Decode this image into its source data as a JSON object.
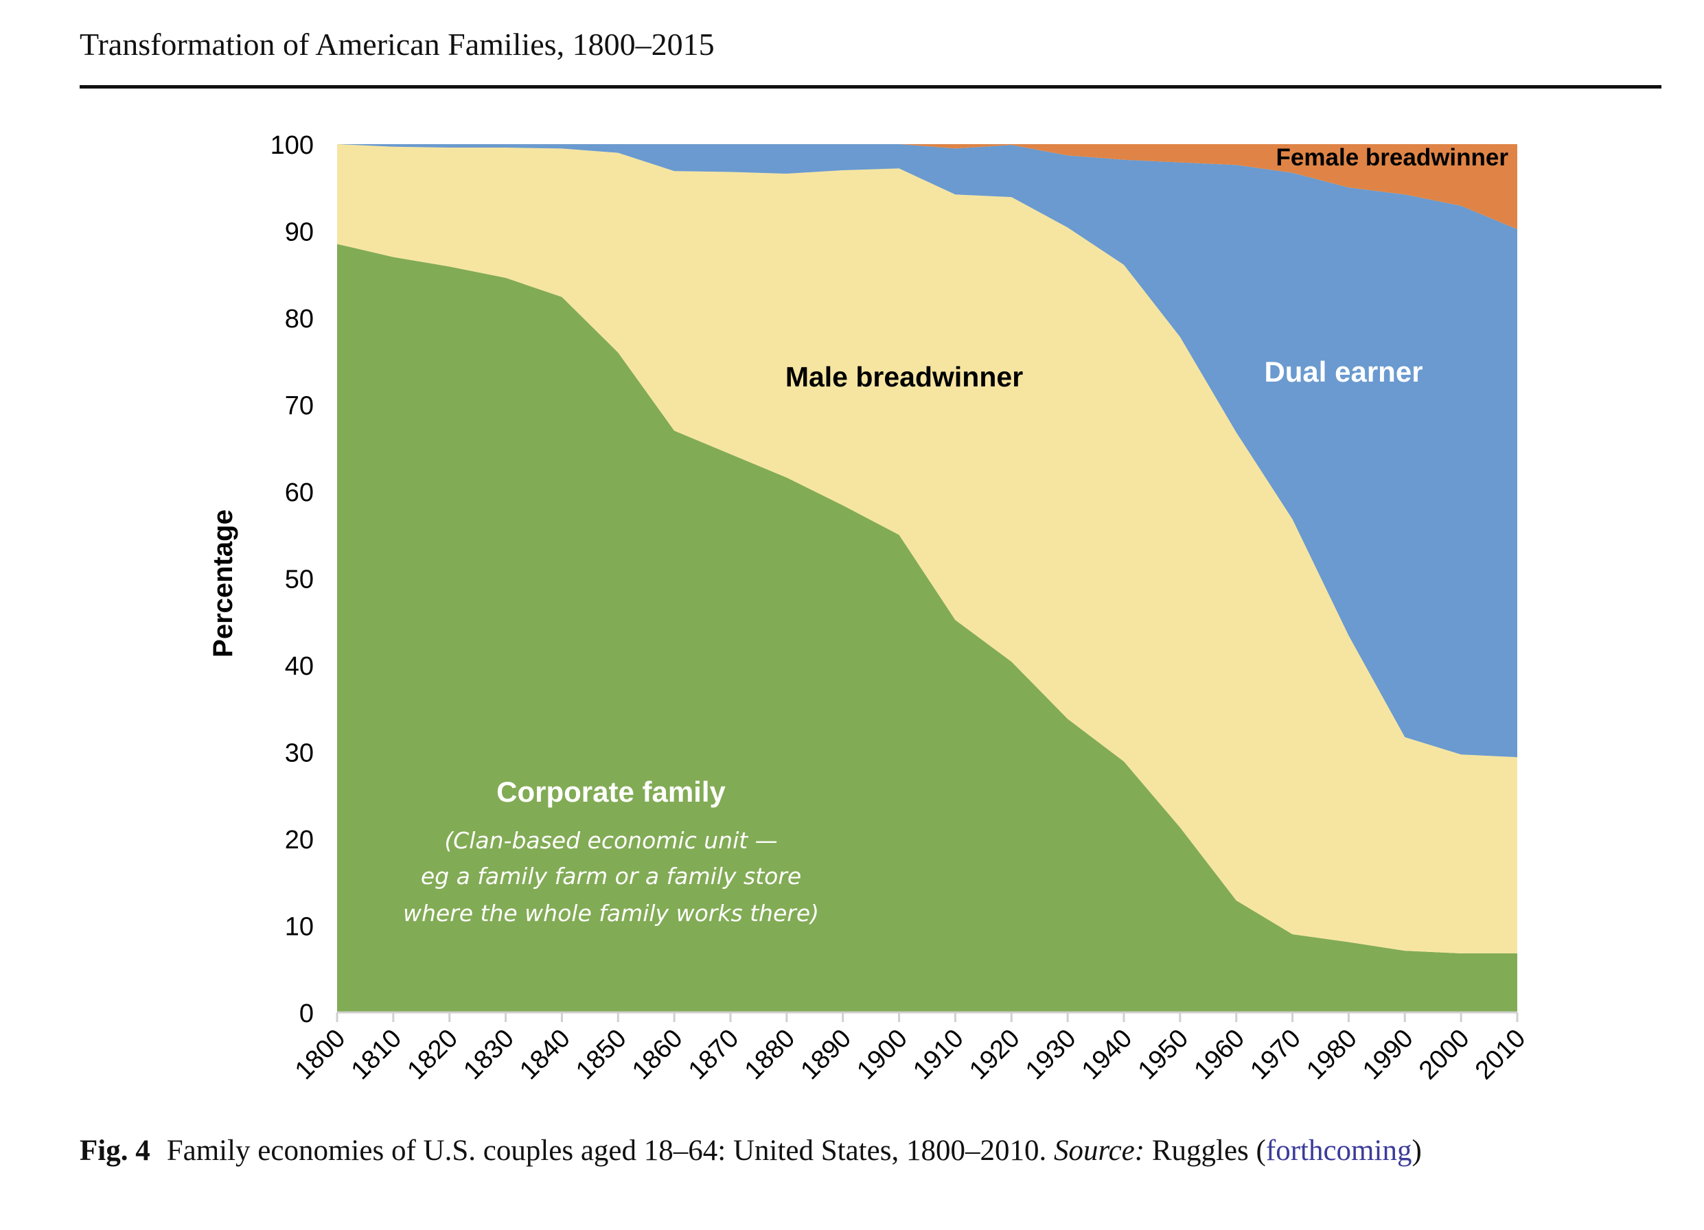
{
  "running_head": "Transformation of American Families, 1800–2015",
  "caption": {
    "label": "Fig. 4",
    "text": "Family economies of U.S. couples aged 18–64: United States, 1800–2010. ",
    "source_label": "Source:",
    "source_text": " Ruggles (",
    "link": "forthcoming",
    "close": ")"
  },
  "chart_data": {
    "type": "area",
    "stacked": true,
    "title": "",
    "xlabel": "",
    "ylabel": "Percentage",
    "ylim": [
      0,
      100
    ],
    "yticks": [
      0,
      10,
      20,
      30,
      40,
      50,
      60,
      70,
      80,
      90,
      100
    ],
    "x": [
      1800,
      1810,
      1820,
      1830,
      1840,
      1850,
      1860,
      1870,
      1880,
      1890,
      1900,
      1910,
      1920,
      1930,
      1940,
      1950,
      1960,
      1970,
      1980,
      1990,
      2000,
      2010
    ],
    "grid": false,
    "legend": "none (inline labels)",
    "series": [
      {
        "name": "Corporate family",
        "color": "#82AB55",
        "values": [
          88.5,
          87,
          85.9,
          84.6,
          82.4,
          76,
          67,
          64.3,
          61.6,
          58.4,
          55,
          45.2,
          40.4,
          33.8,
          28.9,
          21.3,
          12.9,
          9,
          8.1,
          7.1,
          6.8,
          6.8
        ]
      },
      {
        "name": "Male breadwinner",
        "color": "#F6E5A1",
        "values": [
          11.5,
          12.7,
          13.7,
          15,
          17.1,
          23,
          29.9,
          32.5,
          35,
          38.6,
          42.2,
          49,
          53.5,
          56.6,
          57.2,
          56.5,
          53.9,
          47.8,
          35.3,
          24.6,
          22.9,
          22.6
        ]
      },
      {
        "name": "Dual earner",
        "color": "#6A9ACF",
        "values": [
          0,
          0.3,
          0.4,
          0.4,
          0.5,
          1,
          3.1,
          3.2,
          3.4,
          3,
          2.8,
          5.3,
          6,
          8.3,
          12.1,
          20.1,
          30.8,
          39.9,
          51.6,
          62.5,
          63.2,
          60.8
        ]
      },
      {
        "name": "Female breadwinner",
        "color": "#DF8446",
        "values": [
          0,
          0,
          0,
          0,
          0,
          0,
          0,
          0,
          0,
          0,
          0,
          0.5,
          0.1,
          1.3,
          1.8,
          2.1,
          2.4,
          3.3,
          5,
          5.8,
          7.1,
          9.8
        ]
      }
    ],
    "annotations": {
      "corporate_title": "Corporate family",
      "corporate_note": [
        "(Clan-based economic unit —",
        "eg a family farm or a family store",
        "where the whole family works there)"
      ],
      "male": "Male breadwinner",
      "dual": "Dual earner",
      "female": "Female breadwinner"
    }
  }
}
